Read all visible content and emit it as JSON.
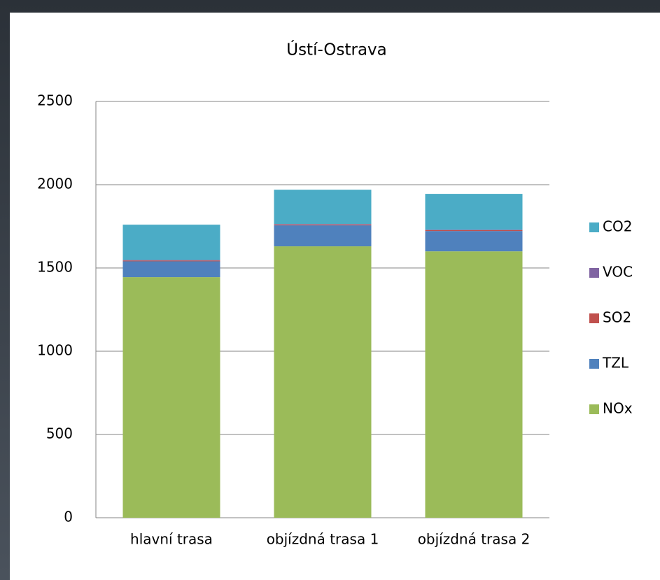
{
  "chart_data": {
    "type": "stacked_bar",
    "title": "Ústí-Ostrava",
    "categories": [
      "hlavní trasa",
      "objízdná trasa 1",
      "objízdná trasa 2"
    ],
    "series": [
      {
        "name": "NOx",
        "color": "#9bbb59",
        "values": [
          1445,
          1630,
          1600
        ]
      },
      {
        "name": "TZL",
        "color": "#4f81bd",
        "values": [
          95,
          126,
          122
        ]
      },
      {
        "name": "SO2",
        "color": "#c0504d",
        "values": [
          5,
          5,
          5
        ]
      },
      {
        "name": "VOC",
        "color": "#8064a2",
        "values": [
          3,
          3,
          3
        ]
      },
      {
        "name": "CO2",
        "color": "#4bacc6",
        "values": [
          212,
          206,
          215
        ]
      }
    ],
    "ylim": [
      0,
      2500
    ],
    "yticks": [
      0,
      500,
      1000,
      1500,
      2000,
      2500
    ],
    "grid": true,
    "legend": "right"
  }
}
